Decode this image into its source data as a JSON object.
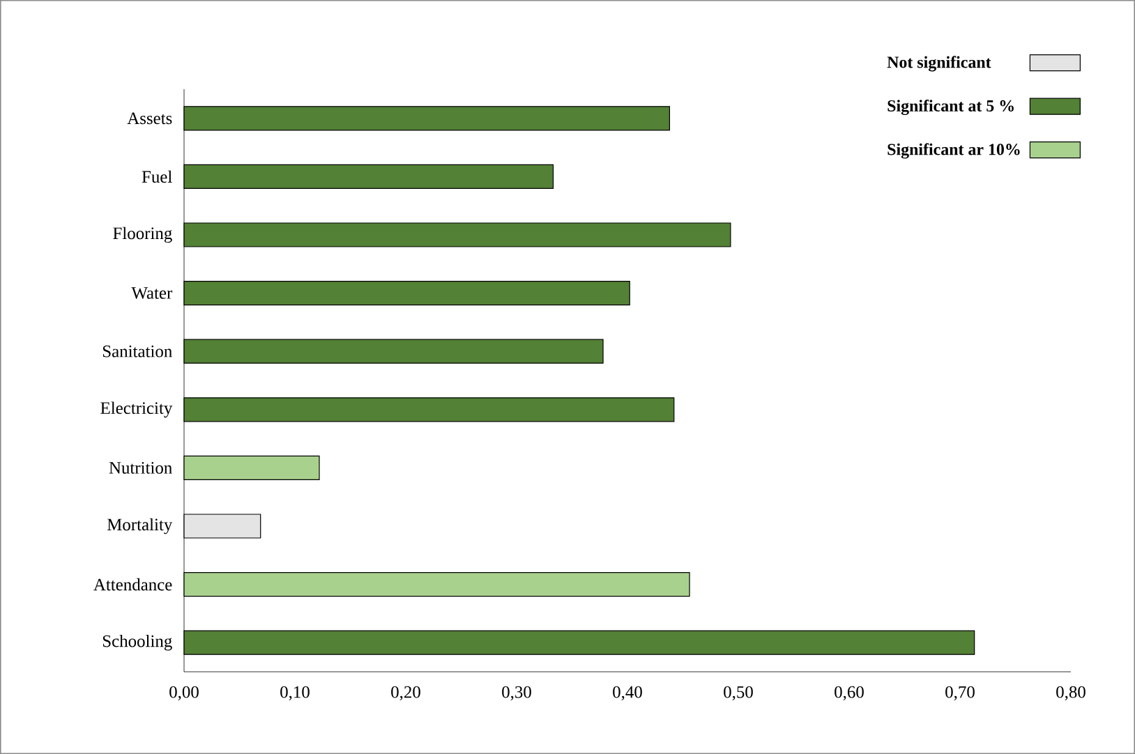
{
  "chart_data": {
    "type": "bar",
    "orientation": "horizontal",
    "categories": [
      "Assets",
      "Fuel",
      "Flooring",
      "Water",
      "Sanitation",
      "Electricity",
      "Nutrition",
      "Mortality",
      "Attendance",
      "Schooling"
    ],
    "series": [
      {
        "name": "Not significant",
        "color": "#e4e4e4",
        "values": [
          null,
          null,
          null,
          null,
          null,
          null,
          null,
          0.069,
          null,
          null
        ]
      },
      {
        "name": "Significant at 5 %",
        "color": "#538135",
        "values": [
          0.438,
          0.333,
          0.493,
          0.402,
          0.378,
          0.442,
          null,
          null,
          null,
          0.713
        ]
      },
      {
        "name": "Significant ar 10%",
        "color": "#a9d18e",
        "values": [
          null,
          null,
          null,
          null,
          null,
          null,
          0.122,
          null,
          0.456,
          null
        ]
      }
    ],
    "xlim": [
      0,
      0.8
    ],
    "xticks": [
      {
        "value": 0,
        "label": "0,00"
      },
      {
        "value": 0.1,
        "label": "0,10"
      },
      {
        "value": 0.2,
        "label": "0,20"
      },
      {
        "value": 0.3,
        "label": "0,30"
      },
      {
        "value": 0.4,
        "label": "0,40"
      },
      {
        "value": 0.5,
        "label": "0,50"
      },
      {
        "value": 0.6,
        "label": "0,60"
      },
      {
        "value": 0.7,
        "label": "0,70"
      },
      {
        "value": 0.8,
        "label": "0,80"
      }
    ],
    "legend": "top right",
    "grid": false
  }
}
